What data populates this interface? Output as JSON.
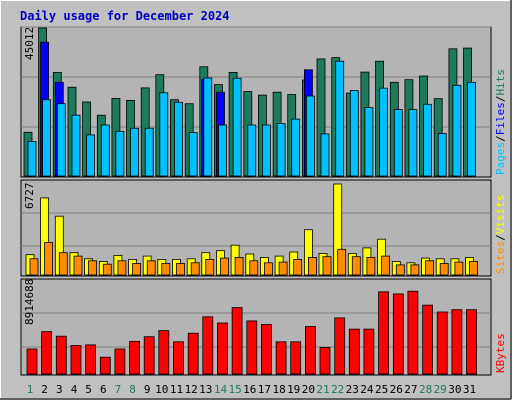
{
  "title": "Daily usage for December 2024",
  "colors": {
    "hits": "#1d7a5c",
    "files": "#0000ff",
    "pages": "#00c0ff",
    "visits": "#ffff00",
    "sites": "#ff8c00",
    "kbytes": "#ff0000",
    "title": "#0000c0",
    "weekend": "#1d7a5c",
    "weekday": "#000000"
  },
  "chart_data": [
    {
      "type": "bar",
      "title": "Daily usage for December 2024",
      "categories": [
        "1",
        "2",
        "3",
        "4",
        "5",
        "6",
        "7",
        "8",
        "9",
        "10",
        "11",
        "12",
        "13",
        "14",
        "15",
        "16",
        "17",
        "18",
        "19",
        "20",
        "21",
        "22",
        "23",
        "24",
        "25",
        "26",
        "27",
        "28",
        "29",
        "30",
        "31"
      ],
      "weekend_days": [
        "1",
        "7",
        "8",
        "14",
        "15",
        "21",
        "22",
        "28",
        "29"
      ],
      "y_max_label": "45012",
      "ymax": 45012,
      "series": [
        {
          "name": "Hits",
          "values": [
            13300,
            45012,
            31500,
            27000,
            22500,
            18500,
            23600,
            23000,
            26800,
            30800,
            23200,
            22000,
            33200,
            27800,
            31500,
            25700,
            24600,
            25500,
            24800,
            29200,
            35600,
            36000,
            25200,
            31600,
            34900,
            28500,
            29300,
            30400,
            23500,
            38700,
            38900
          ]
        },
        {
          "name": "Files",
          "values": [
            0,
            40700,
            28500,
            0,
            0,
            0,
            0,
            0,
            0,
            0,
            0,
            0,
            29400,
            25500,
            0,
            0,
            0,
            0,
            0,
            32300,
            0,
            0,
            0,
            0,
            0,
            0,
            0,
            0,
            0,
            0,
            0
          ]
        },
        {
          "name": "Pages",
          "values": [
            10500,
            23200,
            22000,
            18500,
            12500,
            15500,
            13600,
            14500,
            14500,
            25300,
            22400,
            13200,
            29800,
            15500,
            29700,
            15500,
            15500,
            16000,
            17300,
            24300,
            12800,
            34900,
            26000,
            20800,
            26700,
            20200,
            20200,
            21800,
            12900,
            27600,
            28500
          ]
        }
      ],
      "legend": [
        "Pages",
        "Files",
        "Hits"
      ]
    },
    {
      "type": "bar",
      "y_max_label": "6727",
      "ymax": 6727,
      "series": [
        {
          "name": "Visits",
          "values": [
            1500,
            5700,
            4350,
            1650,
            1200,
            1000,
            1450,
            1150,
            1400,
            1150,
            1150,
            1200,
            1650,
            1800,
            2200,
            1550,
            1300,
            1400,
            1700,
            3350,
            1600,
            6727,
            1600,
            2000,
            2650,
            1000,
            900,
            1250,
            1200,
            1200,
            1300
          ]
        },
        {
          "name": "Sites",
          "values": [
            1200,
            2400,
            1650,
            1400,
            1050,
            800,
            1050,
            850,
            1050,
            850,
            850,
            900,
            1150,
            1250,
            1300,
            1050,
            900,
            950,
            1150,
            1300,
            1350,
            1900,
            1350,
            1300,
            1400,
            750,
            750,
            1050,
            850,
            950,
            1000
          ]
        }
      ],
      "legend": [
        "Sites",
        "Visits"
      ]
    },
    {
      "type": "bar",
      "y_max_label": "8914688",
      "ymax": 8914688,
      "series": [
        {
          "name": "KBytes",
          "values": [
            2450000,
            4150000,
            3700000,
            2800000,
            2850000,
            1650000,
            2450000,
            3200000,
            3650000,
            4250000,
            3150000,
            4000000,
            5600000,
            5000000,
            6500000,
            5200000,
            4850000,
            3150000,
            3150000,
            4650000,
            2600000,
            5500000,
            4400000,
            4400000,
            8050000,
            7850000,
            8110000,
            6750000,
            6070000,
            6300000,
            6300000
          ]
        }
      ],
      "legend": [
        "KBytes"
      ]
    }
  ]
}
